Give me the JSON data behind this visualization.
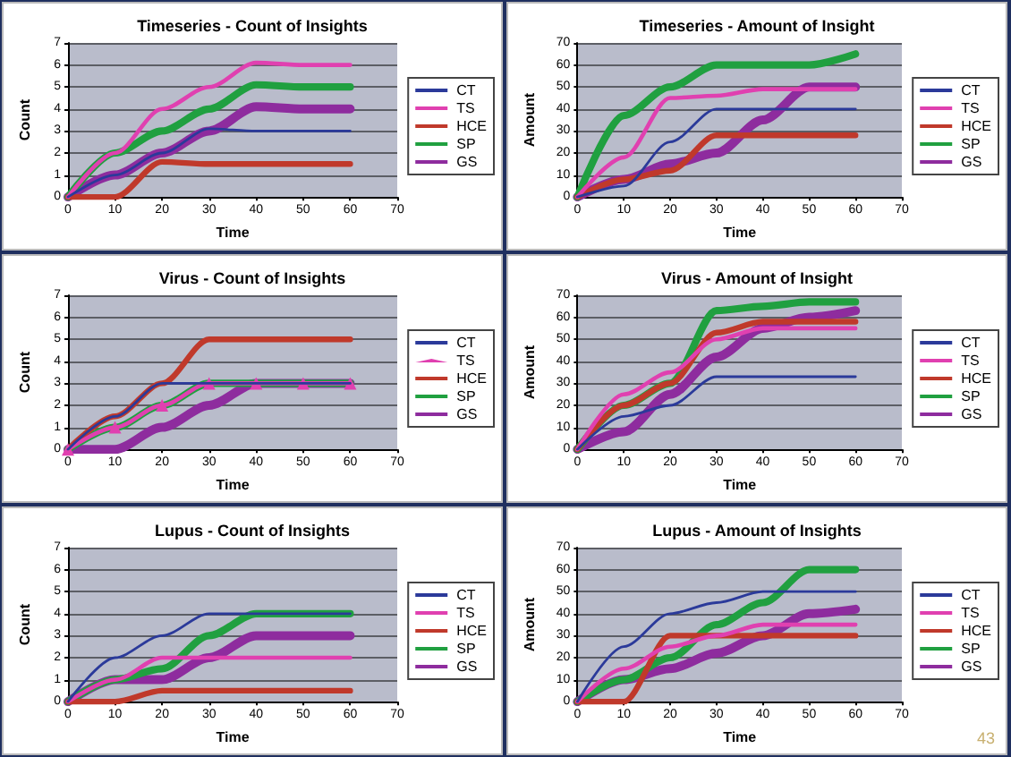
{
  "chart_data": [
    {
      "type": "line",
      "title": "Timeseries - Count of Insights",
      "xlabel": "Time",
      "ylabel": "Count",
      "x": [
        0,
        10,
        20,
        30,
        40,
        50,
        60
      ],
      "xlim": [
        0,
        70
      ],
      "xticks": [
        0,
        10,
        20,
        30,
        40,
        50,
        60,
        70
      ],
      "ylim": [
        0,
        7
      ],
      "yticks": [
        0,
        1,
        2,
        3,
        4,
        5,
        6,
        7
      ],
      "grid": "y",
      "legend": "right",
      "series": [
        {
          "name": "CT",
          "color": "#2b3a9a",
          "values": [
            0,
            1,
            2,
            3.1,
            3,
            3,
            3
          ]
        },
        {
          "name": "TS",
          "color": "#e040b0",
          "values": [
            0,
            2,
            4,
            5,
            6.1,
            6,
            6
          ]
        },
        {
          "name": "HCE",
          "color": "#c0392b",
          "values": [
            0,
            0,
            1.6,
            1.5,
            1.5,
            1.5,
            1.5
          ]
        },
        {
          "name": "SP",
          "color": "#20a040",
          "values": [
            0,
            2,
            3,
            4,
            5.1,
            5,
            5
          ]
        },
        {
          "name": "GS",
          "color": "#8e2c9e",
          "values": [
            0,
            1,
            2,
            3,
            4.1,
            4,
            4
          ]
        }
      ]
    },
    {
      "type": "line",
      "title": "Timeseries - Amount of Insight",
      "xlabel": "Time",
      "ylabel": "Amount",
      "x": [
        0,
        10,
        20,
        30,
        40,
        50,
        60
      ],
      "xlim": [
        0,
        70
      ],
      "xticks": [
        0,
        10,
        20,
        30,
        40,
        50,
        60,
        70
      ],
      "ylim": [
        0,
        70
      ],
      "yticks": [
        0,
        10,
        20,
        30,
        40,
        50,
        60,
        70
      ],
      "grid": "y",
      "legend": "right",
      "series": [
        {
          "name": "CT",
          "color": "#2b3a9a",
          "values": [
            0,
            5,
            25,
            40,
            40,
            40,
            40
          ]
        },
        {
          "name": "TS",
          "color": "#e040b0",
          "values": [
            0,
            18,
            45,
            46,
            49,
            49,
            49
          ]
        },
        {
          "name": "HCE",
          "color": "#c0392b",
          "values": [
            0,
            8,
            12,
            28,
            28,
            28,
            28
          ]
        },
        {
          "name": "SP",
          "color": "#20a040",
          "values": [
            0,
            37,
            50,
            60,
            60,
            60,
            65
          ]
        },
        {
          "name": "GS",
          "color": "#8e2c9e",
          "values": [
            0,
            8,
            15,
            20,
            35,
            50,
            50
          ]
        }
      ]
    },
    {
      "type": "line",
      "title": "Virus - Count of Insights",
      "xlabel": "Time",
      "ylabel": "Count",
      "x": [
        0,
        10,
        20,
        30,
        40,
        50,
        60
      ],
      "xlim": [
        0,
        70
      ],
      "xticks": [
        0,
        10,
        20,
        30,
        40,
        50,
        60,
        70
      ],
      "ylim": [
        0,
        7
      ],
      "yticks": [
        0,
        1,
        2,
        3,
        4,
        5,
        6,
        7
      ],
      "grid": "y",
      "legend": "right",
      "series": [
        {
          "name": "CT",
          "color": "#2b3a9a",
          "values": [
            0,
            1.5,
            3,
            3,
            3,
            3,
            3
          ]
        },
        {
          "name": "TS",
          "color": "#e040b0",
          "marker": "triangle",
          "values": [
            0,
            1,
            2,
            3,
            3,
            3,
            3
          ]
        },
        {
          "name": "HCE",
          "color": "#c0392b",
          "values": [
            0,
            1.5,
            3,
            5,
            5,
            5,
            5
          ]
        },
        {
          "name": "SP",
          "color": "#20a040",
          "values": [
            0,
            1,
            2,
            3,
            3,
            3,
            3
          ]
        },
        {
          "name": "GS",
          "color": "#8e2c9e",
          "values": [
            0,
            0,
            1,
            2,
            3,
            3,
            3
          ]
        }
      ]
    },
    {
      "type": "line",
      "title": "Virus - Amount of Insight",
      "xlabel": "Time",
      "ylabel": "Amount",
      "x": [
        0,
        10,
        20,
        30,
        40,
        50,
        60
      ],
      "xlim": [
        0,
        70
      ],
      "xticks": [
        0,
        10,
        20,
        30,
        40,
        50,
        60,
        70
      ],
      "ylim": [
        0,
        70
      ],
      "yticks": [
        0,
        10,
        20,
        30,
        40,
        50,
        60,
        70
      ],
      "grid": "y",
      "legend": "right",
      "series": [
        {
          "name": "CT",
          "color": "#2b3a9a",
          "values": [
            0,
            15,
            20,
            33,
            33,
            33,
            33
          ]
        },
        {
          "name": "TS",
          "color": "#e040b0",
          "values": [
            0,
            25,
            35,
            50,
            55,
            55,
            55
          ]
        },
        {
          "name": "HCE",
          "color": "#c0392b",
          "values": [
            0,
            20,
            30,
            53,
            58,
            58,
            58
          ]
        },
        {
          "name": "SP",
          "color": "#20a040",
          "values": [
            0,
            20,
            30,
            63,
            65,
            67,
            67
          ]
        },
        {
          "name": "GS",
          "color": "#8e2c9e",
          "values": [
            0,
            8,
            25,
            42,
            55,
            60,
            63
          ]
        }
      ]
    },
    {
      "type": "line",
      "title": "Lupus - Count of Insights",
      "xlabel": "Time",
      "ylabel": "Count",
      "x": [
        0,
        10,
        20,
        30,
        40,
        50,
        60
      ],
      "xlim": [
        0,
        70
      ],
      "xticks": [
        0,
        10,
        20,
        30,
        40,
        50,
        60,
        70
      ],
      "ylim": [
        0,
        7
      ],
      "yticks": [
        0,
        1,
        2,
        3,
        4,
        5,
        6,
        7
      ],
      "grid": "y",
      "legend": "right",
      "series": [
        {
          "name": "CT",
          "color": "#2b3a9a",
          "values": [
            0,
            2,
            3,
            4,
            4,
            4,
            4
          ]
        },
        {
          "name": "TS",
          "color": "#e040b0",
          "values": [
            0,
            1,
            2,
            2,
            2,
            2,
            2
          ]
        },
        {
          "name": "HCE",
          "color": "#c0392b",
          "values": [
            0,
            0,
            0.5,
            0.5,
            0.5,
            0.5,
            0.5
          ]
        },
        {
          "name": "SP",
          "color": "#20a040",
          "values": [
            0,
            1,
            1.5,
            3,
            4,
            4,
            4
          ]
        },
        {
          "name": "GS",
          "color": "#8e2c9e",
          "values": [
            0,
            1,
            1,
            2,
            3,
            3,
            3
          ]
        }
      ]
    },
    {
      "type": "line",
      "title": "Lupus - Amount of Insights",
      "xlabel": "Time",
      "ylabel": "Amount",
      "x": [
        0,
        10,
        20,
        30,
        40,
        50,
        60
      ],
      "xlim": [
        0,
        70
      ],
      "xticks": [
        0,
        10,
        20,
        30,
        40,
        50,
        60,
        70
      ],
      "ylim": [
        0,
        70
      ],
      "yticks": [
        0,
        10,
        20,
        30,
        40,
        50,
        60,
        70
      ],
      "grid": "y",
      "legend": "right",
      "annotations": [
        "43"
      ],
      "series": [
        {
          "name": "CT",
          "color": "#2b3a9a",
          "values": [
            0,
            25,
            40,
            45,
            50,
            50,
            50
          ]
        },
        {
          "name": "TS",
          "color": "#e040b0",
          "values": [
            0,
            15,
            25,
            30,
            35,
            35,
            35
          ]
        },
        {
          "name": "HCE",
          "color": "#c0392b",
          "values": [
            0,
            0,
            30,
            30,
            30,
            30,
            30
          ]
        },
        {
          "name": "SP",
          "color": "#20a040",
          "values": [
            0,
            10,
            20,
            35,
            45,
            60,
            60
          ]
        },
        {
          "name": "GS",
          "color": "#8e2c9e",
          "values": [
            0,
            10,
            15,
            22,
            30,
            40,
            42
          ]
        }
      ]
    }
  ]
}
